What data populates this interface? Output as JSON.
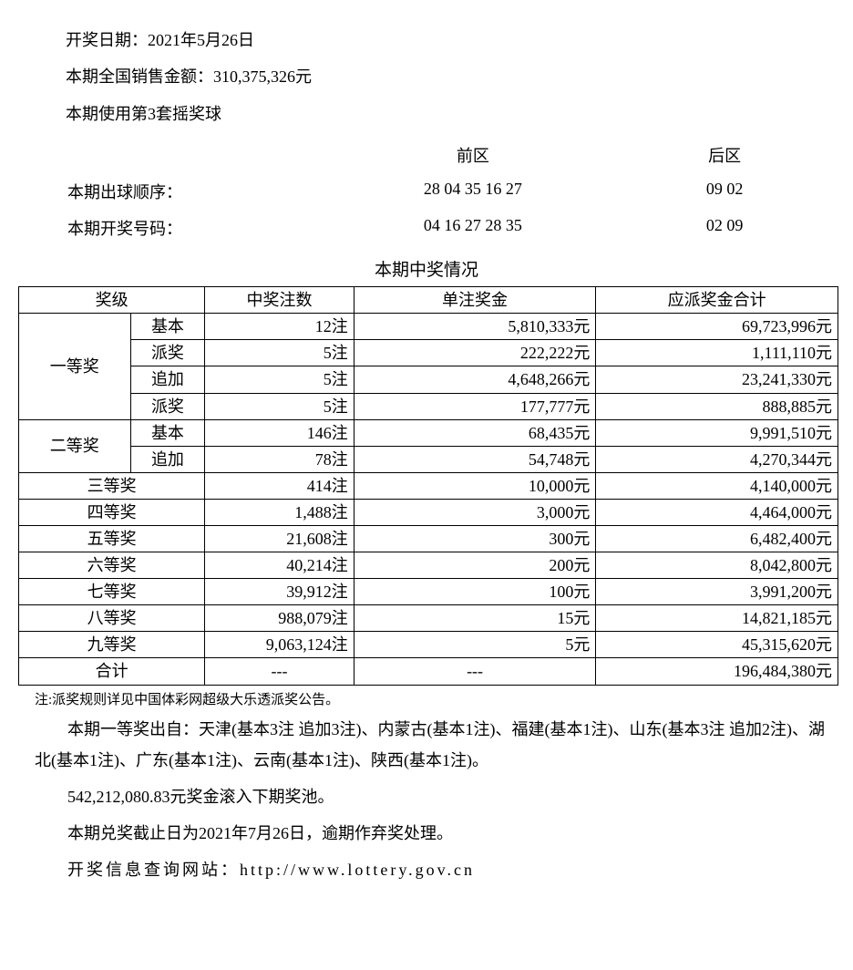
{
  "header": {
    "draw_date_label": "开奖日期：",
    "draw_date_value": "2021年5月26日",
    "sales_label": "本期全国销售金额：",
    "sales_value": "310,375,326元",
    "ballset_line": "本期使用第3套摇奖球"
  },
  "numbers": {
    "front_label": "前区",
    "back_label": "后区",
    "draw_order_label": "本期出球顺序：",
    "draw_order_front": "28 04 35 16 27",
    "draw_order_back": "09 02",
    "winning_label": "本期开奖号码：",
    "winning_front": "04 16 27 28 35",
    "winning_back": "02 09"
  },
  "section_title": "本期中奖情况",
  "table": {
    "headers": {
      "tier": "奖级",
      "count": "中奖注数",
      "unit": "单注奖金",
      "total": "应派奖金合计"
    },
    "tier1_label": "一等奖",
    "tier1_rows": [
      {
        "sub": "基本",
        "count": "12注",
        "unit": "5,810,333元",
        "total": "69,723,996元"
      },
      {
        "sub": "派奖",
        "count": "5注",
        "unit": "222,222元",
        "total": "1,111,110元"
      },
      {
        "sub": "追加",
        "count": "5注",
        "unit": "4,648,266元",
        "total": "23,241,330元"
      },
      {
        "sub": "派奖",
        "count": "5注",
        "unit": "177,777元",
        "total": "888,885元"
      }
    ],
    "tier2_label": "二等奖",
    "tier2_rows": [
      {
        "sub": "基本",
        "count": "146注",
        "unit": "68,435元",
        "total": "9,991,510元"
      },
      {
        "sub": "追加",
        "count": "78注",
        "unit": "54,748元",
        "total": "4,270,344元"
      }
    ],
    "simple_rows": [
      {
        "tier": "三等奖",
        "count": "414注",
        "unit": "10,000元",
        "total": "4,140,000元"
      },
      {
        "tier": "四等奖",
        "count": "1,488注",
        "unit": "3,000元",
        "total": "4,464,000元"
      },
      {
        "tier": "五等奖",
        "count": "21,608注",
        "unit": "300元",
        "total": "6,482,400元"
      },
      {
        "tier": "六等奖",
        "count": "40,214注",
        "unit": "200元",
        "total": "8,042,800元"
      },
      {
        "tier": "七等奖",
        "count": "39,912注",
        "unit": "100元",
        "total": "3,991,200元"
      },
      {
        "tier": "八等奖",
        "count": "988,079注",
        "unit": "15元",
        "total": "14,821,185元"
      },
      {
        "tier": "九等奖",
        "count": "9,063,124注",
        "unit": "5元",
        "total": "45,315,620元"
      }
    ],
    "total_row": {
      "tier": "合计",
      "count": "---",
      "unit": "---",
      "total": "196,484,380元"
    }
  },
  "footnote": "注:派奖规则详见中国体彩网超级大乐透派奖公告。",
  "paragraphs": {
    "winners": "本期一等奖出自：天津(基本3注 追加3注)、内蒙古(基本1注)、福建(基本1注)、山东(基本3注 追加2注)、湖北(基本1注)、广东(基本1注)、云南(基本1注)、陕西(基本1注)。",
    "rollover": "542,212,080.83元奖金滚入下期奖池。",
    "deadline": "本期兑奖截止日为2021年7月26日，逾期作弃奖处理。",
    "website": "开奖信息查询网站：http://www.lottery.gov.cn"
  }
}
